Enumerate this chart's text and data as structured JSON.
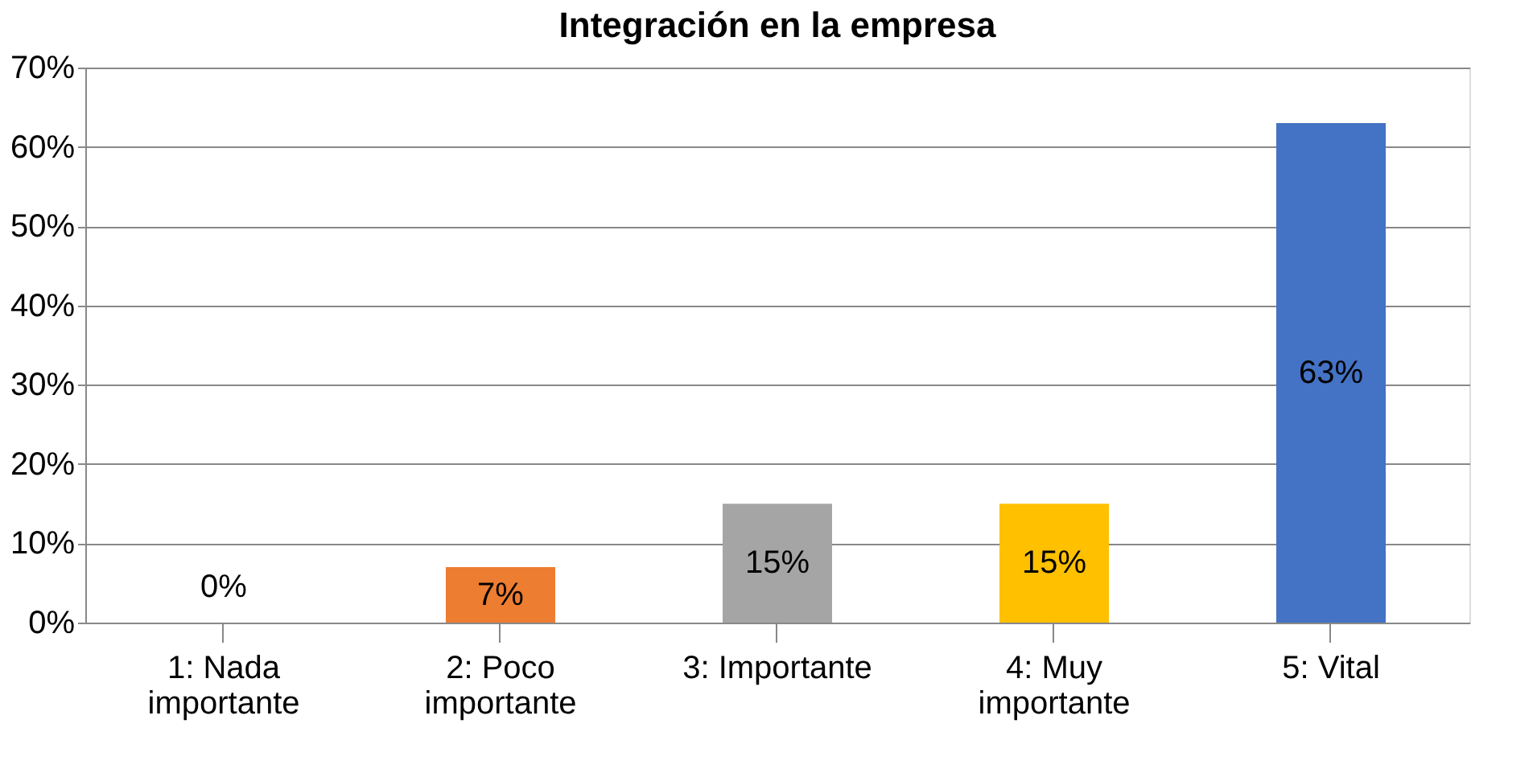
{
  "chart_data": {
    "type": "bar",
    "title": "Integración en la empresa",
    "categories": [
      "1: Nada\nimportante",
      "2: Poco\nimportante",
      "3: Importante",
      "4: Muy\nimportante",
      "5: Vital"
    ],
    "values": [
      0,
      7,
      15,
      15,
      63
    ],
    "colors": [
      "#4472c4",
      "#ed7d31",
      "#a5a5a5",
      "#ffc000",
      "#4472c4"
    ],
    "ylim": [
      0,
      70
    ],
    "yticks": [
      {
        "value": 0,
        "label": "0%"
      },
      {
        "value": 10,
        "label": "10%"
      },
      {
        "value": 20,
        "label": "20%"
      },
      {
        "value": 30,
        "label": "30%"
      },
      {
        "value": 40,
        "label": "40%"
      },
      {
        "value": 50,
        "label": "50%"
      },
      {
        "value": 60,
        "label": "60%"
      },
      {
        "value": 70,
        "label": "70%"
      }
    ],
    "value_labels": [
      "0%",
      "7%",
      "15%",
      "15%",
      "63%"
    ],
    "grid": "y"
  }
}
